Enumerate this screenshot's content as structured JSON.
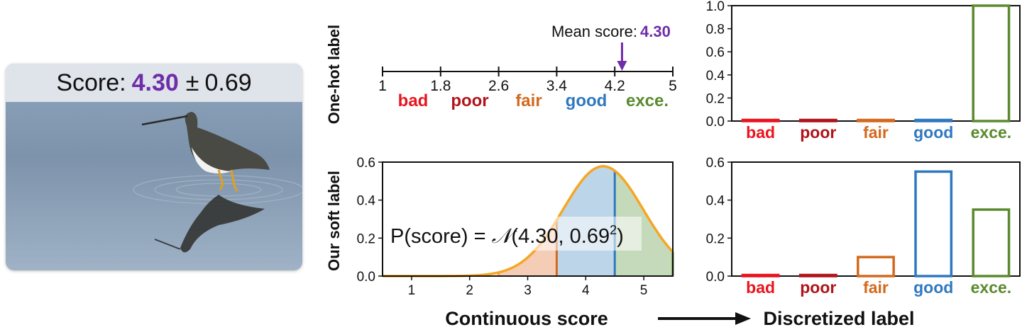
{
  "photo": {
    "score_label": "Score:",
    "score_mean": "4.30",
    "score_pm": "±",
    "score_std": "0.69",
    "accent_color": "#6f2da8"
  },
  "row_labels": {
    "top": "One-hot label",
    "bottom": "Our soft label"
  },
  "number_line": {
    "ticks": [
      "1",
      "1.8",
      "2.6",
      "3.4",
      "4.2",
      "5"
    ],
    "tick_values": [
      1,
      1.8,
      2.6,
      3.4,
      4.2,
      5
    ],
    "mean_text": "Mean score:",
    "mean_value_text": "4.30",
    "mean_value": 4.3
  },
  "categories": [
    {
      "label": "bad",
      "color": "#e8141e"
    },
    {
      "label": "poor",
      "color": "#b0141a"
    },
    {
      "label": "fair",
      "color": "#d2691e"
    },
    {
      "label": "good",
      "color": "#2f78c0"
    },
    {
      "label": "exce.",
      "color": "#5a8a2e"
    }
  ],
  "bottom_labels": {
    "left": "Continuous score",
    "right": "Discretized label"
  },
  "formula": {
    "prefix": "P(score) = ",
    "script_n": "𝒩",
    "args": "(4.30, 0.69",
    "exponent": "2",
    "close": ")"
  },
  "chart_data": [
    {
      "type": "bar",
      "categories": [
        "bad",
        "poor",
        "fair",
        "good",
        "exce."
      ],
      "values": [
        0,
        0,
        0,
        0,
        1.0
      ],
      "ylim": [
        0,
        1.0
      ],
      "yticks": [
        "0.0",
        "0.2",
        "0.4",
        "0.6",
        "0.8",
        "1.0"
      ],
      "ytick_values": [
        0,
        0.2,
        0.4,
        0.6,
        0.8,
        1.0
      ]
    },
    {
      "type": "area",
      "mean": 4.3,
      "std": 0.69,
      "xlim": [
        0.5,
        5.5
      ],
      "ylim": [
        0,
        0.6
      ],
      "xticks": [
        "1",
        "2",
        "3",
        "4",
        "5"
      ],
      "xtick_values": [
        1,
        2,
        3,
        4,
        5
      ],
      "yticks": [
        "0.0",
        "0.2",
        "0.4",
        "0.6"
      ],
      "ytick_values": [
        0,
        0.2,
        0.4,
        0.6
      ],
      "bin_edges": [
        0.5,
        1.5,
        2.5,
        3.5,
        4.5,
        5.5
      ],
      "curve_color": "#f5a623"
    },
    {
      "type": "bar",
      "categories": [
        "bad",
        "poor",
        "fair",
        "good",
        "exce."
      ],
      "values": [
        0,
        0,
        0.1,
        0.55,
        0.35
      ],
      "ylim": [
        0,
        0.6
      ],
      "yticks": [
        "0.0",
        "0.2",
        "0.4",
        "0.6"
      ],
      "ytick_values": [
        0,
        0.2,
        0.4,
        0.6
      ]
    }
  ]
}
